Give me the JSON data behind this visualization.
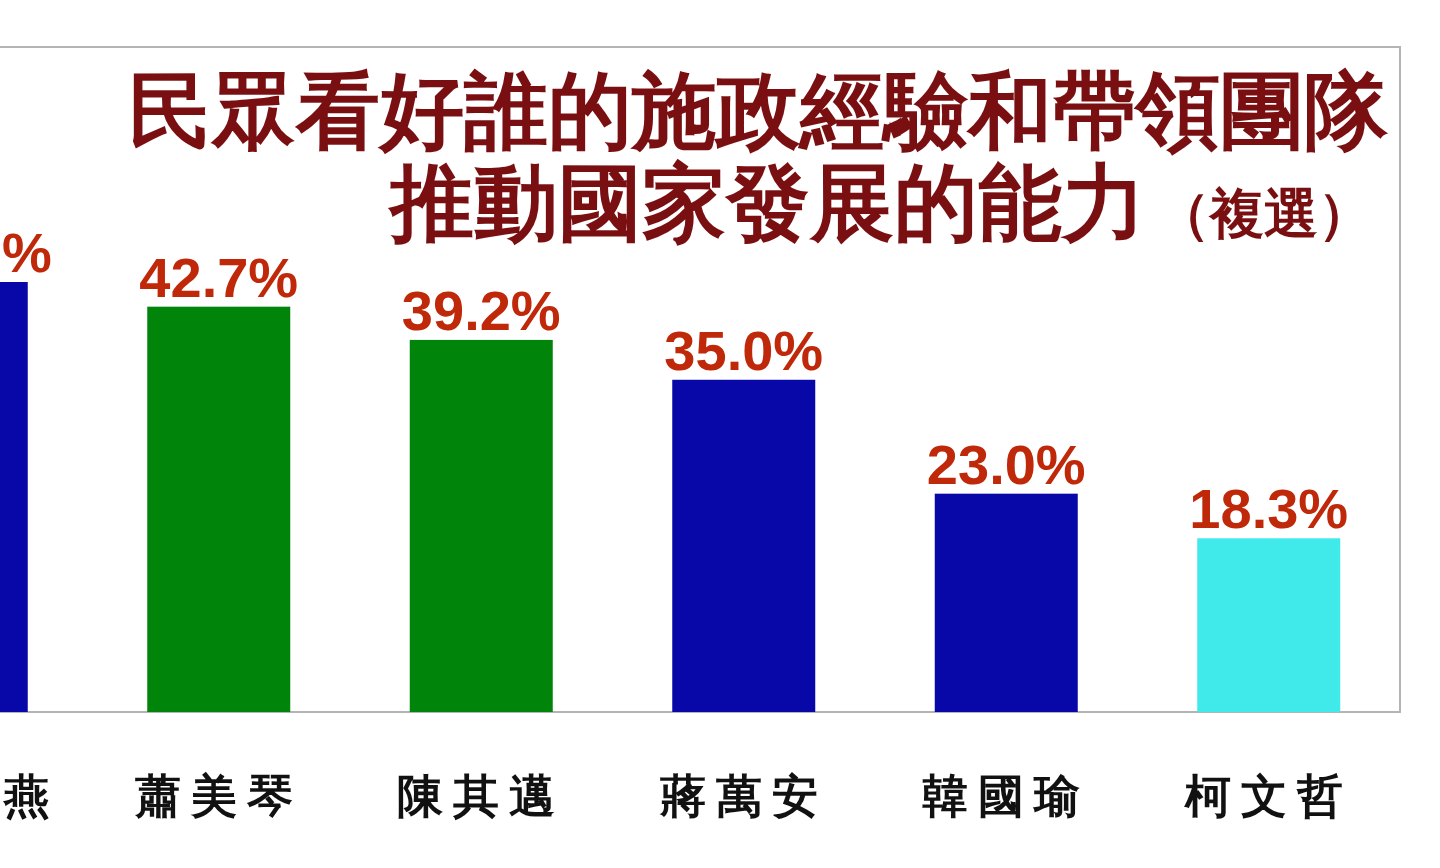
{
  "chart_data": {
    "type": "bar",
    "title": "民眾看好誰的施政經驗和帶領團隊推動國家發展的能力（複選）",
    "categories": [
      "燕",
      "蕭美琴",
      "陳其邁",
      "蔣萬安",
      "韓國瑜",
      "柯文哲"
    ],
    "values": [
      45.3,
      42.7,
      39.2,
      35.0,
      23.0,
      18.3
    ],
    "colors": [
      "#0808a8",
      "#00840a",
      "#00840a",
      "#0808a8",
      "#0808a8",
      "#40eaea"
    ],
    "value_labels": [
      "%",
      "42.7%",
      "39.2%",
      "35.0%",
      "23.0%",
      "18.3%"
    ]
  }
}
